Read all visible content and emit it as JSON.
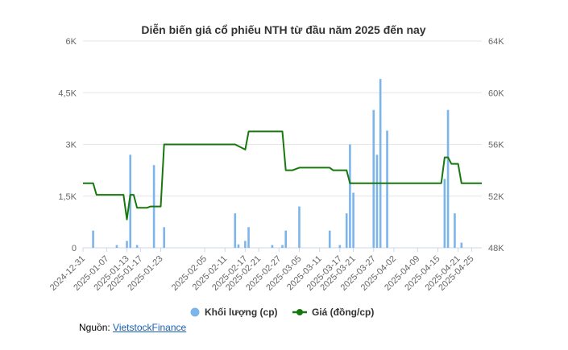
{
  "chart_data": {
    "type": "bar+line",
    "title": "Diễn biến giá cổ phiếu NTH từ đầu năm 2025 đến nay",
    "x_ticks": [
      "2024-12-31",
      "2025-01-07",
      "2025-01-13",
      "2025-01-17",
      "2025-01-23",
      "2025-02-05",
      "2025-02-11",
      "2025-02-17",
      "2025-02-21",
      "2025-02-27",
      "2025-03-05",
      "2025-03-11",
      "2025-03-17",
      "2025-03-21",
      "2025-03-27",
      "2025-04-02",
      "2025-04-09",
      "2025-04-15",
      "2025-04-21",
      "2025-04-25"
    ],
    "y_left": {
      "ticks": [
        "0",
        "1,5K",
        "3K",
        "4,5K",
        "6K"
      ],
      "range": [
        0,
        6000
      ]
    },
    "y_right": {
      "ticks": [
        "48K",
        "52K",
        "56K",
        "60K",
        "64K"
      ],
      "range": [
        48000,
        64000
      ]
    },
    "series": [
      {
        "name": "Khối lượng (cp)",
        "type": "bar",
        "color": "#7cb5ec",
        "points": [
          {
            "x": "2025-01-03",
            "y": 500
          },
          {
            "x": "2025-01-10",
            "y": 80
          },
          {
            "x": "2025-01-13",
            "y": 200
          },
          {
            "x": "2025-01-14",
            "y": 2700
          },
          {
            "x": "2025-01-16",
            "y": 80
          },
          {
            "x": "2025-01-21",
            "y": 2400
          },
          {
            "x": "2025-01-24",
            "y": 600
          },
          {
            "x": "2025-02-14",
            "y": 1000
          },
          {
            "x": "2025-02-15",
            "y": 100
          },
          {
            "x": "2025-02-17",
            "y": 200
          },
          {
            "x": "2025-02-18",
            "y": 600
          },
          {
            "x": "2025-02-25",
            "y": 80
          },
          {
            "x": "2025-02-28",
            "y": 80
          },
          {
            "x": "2025-03-01",
            "y": 500
          },
          {
            "x": "2025-03-05",
            "y": 1200
          },
          {
            "x": "2025-03-14",
            "y": 500
          },
          {
            "x": "2025-03-17",
            "y": 80
          },
          {
            "x": "2025-03-19",
            "y": 1000
          },
          {
            "x": "2025-03-20",
            "y": 3000
          },
          {
            "x": "2025-03-21",
            "y": 1600
          },
          {
            "x": "2025-03-27",
            "y": 4000
          },
          {
            "x": "2025-03-28",
            "y": 2700
          },
          {
            "x": "2025-03-29",
            "y": 4900
          },
          {
            "x": "2025-03-31",
            "y": 3400
          },
          {
            "x": "2025-04-17",
            "y": 2000
          },
          {
            "x": "2025-04-18",
            "y": 4000
          },
          {
            "x": "2025-04-20",
            "y": 1000
          },
          {
            "x": "2025-04-22",
            "y": 150
          }
        ]
      },
      {
        "name": "Giá (đồng/cp)",
        "type": "line",
        "color": "#17780d",
        "points": [
          {
            "x": "2024-12-31",
            "y": 53000
          },
          {
            "x": "2025-01-03",
            "y": 53000
          },
          {
            "x": "2025-01-04",
            "y": 52100
          },
          {
            "x": "2025-01-12",
            "y": 52100
          },
          {
            "x": "2025-01-13",
            "y": 50200
          },
          {
            "x": "2025-01-14",
            "y": 52100
          },
          {
            "x": "2025-01-15",
            "y": 52100
          },
          {
            "x": "2025-01-16",
            "y": 51100
          },
          {
            "x": "2025-01-19",
            "y": 51100
          },
          {
            "x": "2025-01-20",
            "y": 51200
          },
          {
            "x": "2025-01-23",
            "y": 51200
          },
          {
            "x": "2025-01-24",
            "y": 56000
          },
          {
            "x": "2025-02-14",
            "y": 56000
          },
          {
            "x": "2025-02-17",
            "y": 55600
          },
          {
            "x": "2025-02-18",
            "y": 57000
          },
          {
            "x": "2025-02-28",
            "y": 57000
          },
          {
            "x": "2025-03-01",
            "y": 54000
          },
          {
            "x": "2025-03-03",
            "y": 54000
          },
          {
            "x": "2025-03-05",
            "y": 54200
          },
          {
            "x": "2025-03-14",
            "y": 54200
          },
          {
            "x": "2025-03-15",
            "y": 54000
          },
          {
            "x": "2025-03-19",
            "y": 54000
          },
          {
            "x": "2025-03-20",
            "y": 53000
          },
          {
            "x": "2025-04-16",
            "y": 53000
          },
          {
            "x": "2025-04-17",
            "y": 55000
          },
          {
            "x": "2025-04-18",
            "y": 55000
          },
          {
            "x": "2025-04-19",
            "y": 54500
          },
          {
            "x": "2025-04-21",
            "y": 54500
          },
          {
            "x": "2025-04-22",
            "y": 53000
          },
          {
            "x": "2025-04-28",
            "y": 53000
          }
        ]
      }
    ],
    "legend": {
      "placement": "bottom-center"
    },
    "grid": {
      "horizontal": true,
      "vertical": false
    }
  },
  "source": {
    "prefix": "Nguồn: ",
    "link_text": "VietstockFinance"
  }
}
